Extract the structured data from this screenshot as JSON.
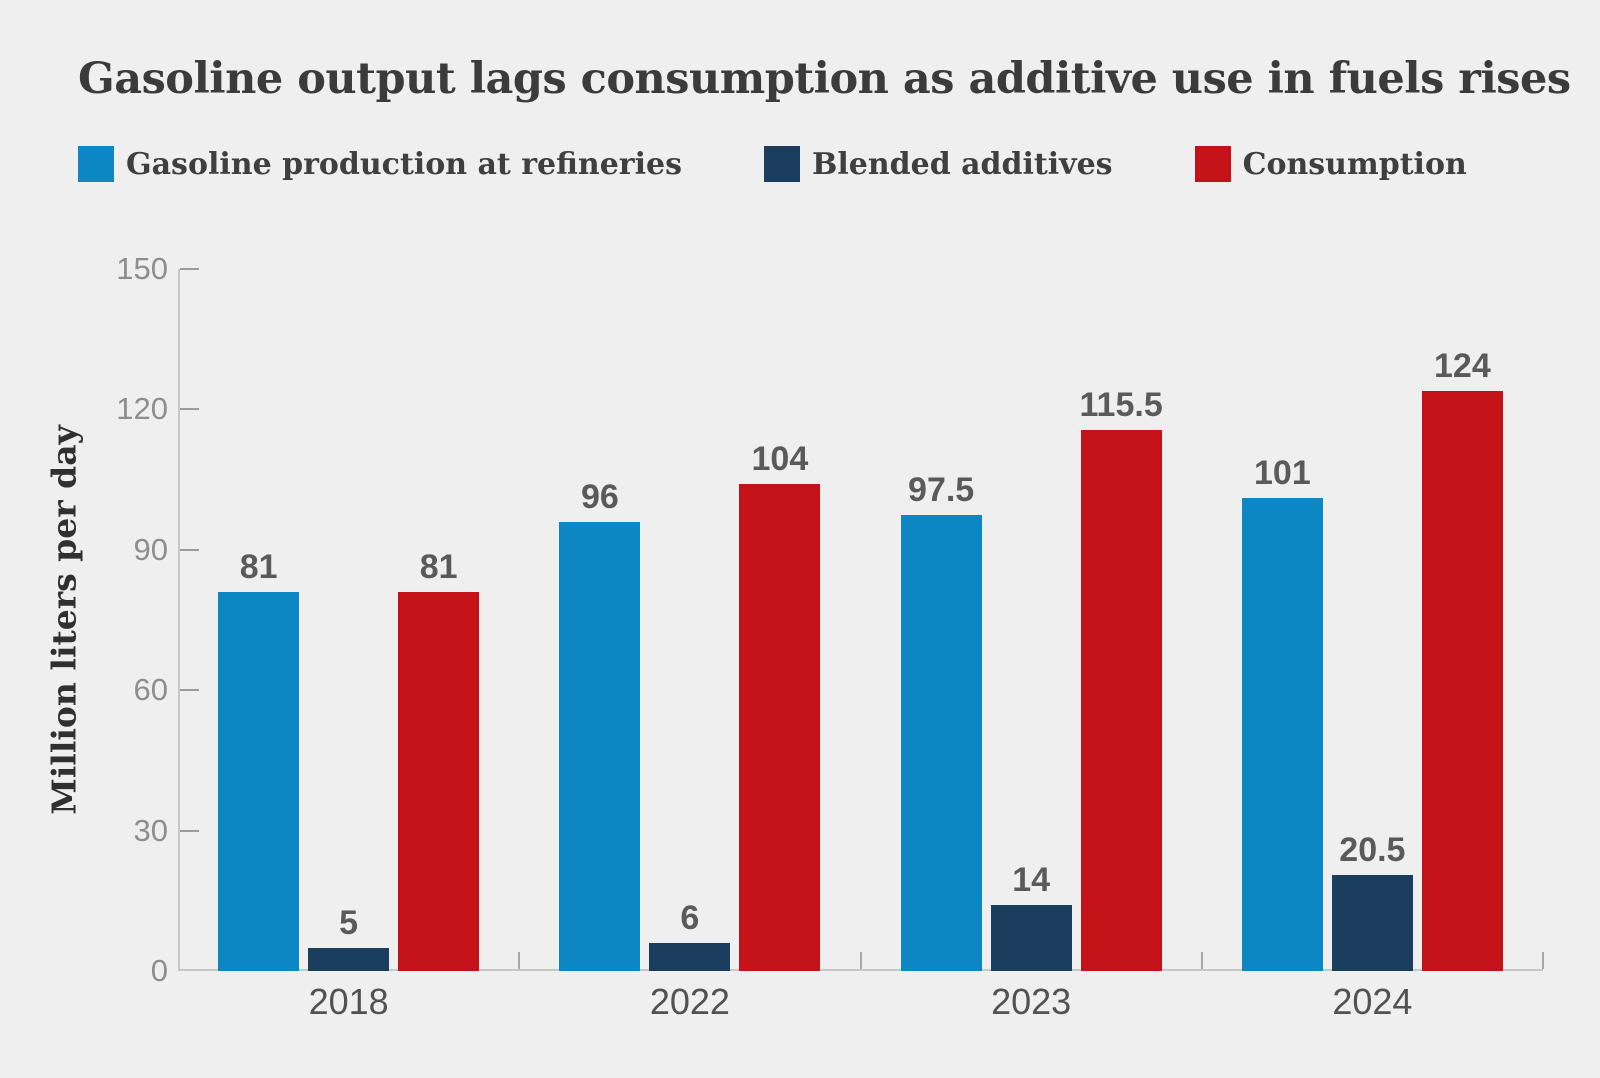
{
  "chart_data": {
    "type": "bar",
    "title": "Gasoline output lags consumption as additive use in fuels rises",
    "ylabel": "Million liters per day",
    "xlabel": "",
    "categories": [
      "2018",
      "2022",
      "2023",
      "2024"
    ],
    "series": [
      {
        "name": "Gasoline production at refineries",
        "color": "#0c87c4",
        "values": [
          81,
          96,
          97.5,
          101
        ]
      },
      {
        "name": "Blended additives",
        "color": "#1b3d5e",
        "values": [
          5,
          6,
          14,
          20.5
        ]
      },
      {
        "name": "Consumption",
        "color": "#c41219",
        "values": [
          81,
          104,
          115.5,
          124
        ]
      }
    ],
    "ylim": [
      0,
      150
    ],
    "yticks": [
      0,
      30,
      60,
      90,
      120,
      150
    ],
    "grid": false,
    "legend_position": "top",
    "value_labels": true
  },
  "colors": {
    "background": "#efefef",
    "title_text": "#3b3b3b",
    "legend_text": "#3f3f3f",
    "y_axis_title_text": "#303030",
    "value_label_text": "#5a5a5a",
    "x_tick_label_text": "#525252",
    "y_tick_label_text": "#8e8e8e",
    "axis_line": "#c7c7c7",
    "y_tick_mark": "#9b9b9b",
    "x_boundary_tick": "#a8a8a8"
  }
}
